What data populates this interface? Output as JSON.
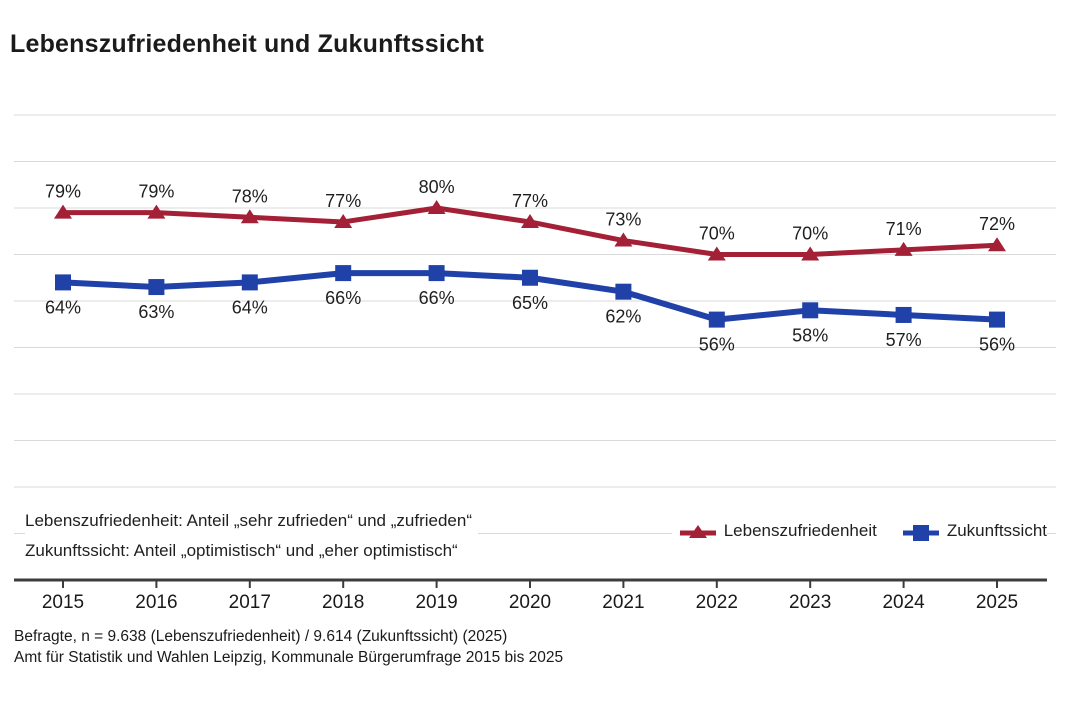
{
  "title": "Lebenszufriedenheit und Zukunftssicht",
  "annotations": {
    "line1": "Lebenszufriedenheit: Anteil „sehr zufrieden“ und „zufrieden“",
    "line2": "Zukunftssicht: Anteil „optimistisch“ und „eher optimistisch“"
  },
  "legend": {
    "items": [
      {
        "label": "Lebenszufriedenheit",
        "marker": "triangle-marker",
        "color": "#a32036"
      },
      {
        "label": "Zukunftssicht",
        "marker": "square-marker",
        "color": "#2041a8"
      }
    ]
  },
  "footer": {
    "line1": "Befragte, n = 9.638 (Lebenszufriedenheit) / 9.614 (Zukunftssicht) (2025)",
    "line2": "Amt für Statistik und Wahlen Leipzig, Kommunale Bürgerumfrage 2015 bis 2025"
  },
  "chart_data": {
    "type": "line",
    "title": "Lebenszufriedenheit und Zukunftssicht",
    "categories": [
      "2015",
      "2016",
      "2017",
      "2018",
      "2019",
      "2020",
      "2021",
      "2022",
      "2023",
      "2024",
      "2025"
    ],
    "series": [
      {
        "name": "Lebenszufriedenheit",
        "color": "#a32036",
        "marker": "triangle",
        "label_position": "above",
        "values": [
          79,
          79,
          78,
          77,
          80,
          77,
          73,
          70,
          70,
          71,
          72
        ]
      },
      {
        "name": "Zukunftssicht",
        "color": "#2041a8",
        "marker": "square",
        "label_position": "below",
        "values": [
          64,
          63,
          64,
          66,
          66,
          65,
          62,
          56,
          58,
          57,
          56
        ]
      }
    ],
    "unit": "%",
    "xlabel": "",
    "ylabel": "",
    "ylim": [
      0,
      100
    ],
    "grid_interval": 10,
    "grid_color": "#d9d9d9",
    "axis_color": "#3c3c3c",
    "label_color": "#1f1f1f",
    "legend_position": "bottom-right"
  }
}
